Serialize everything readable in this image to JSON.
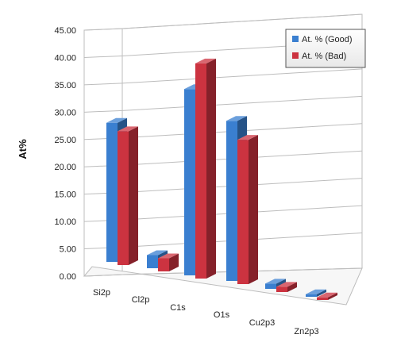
{
  "chart_data": {
    "type": "bar",
    "title": "",
    "xlabel": "",
    "ylabel": "At%",
    "ylim": [
      0,
      45
    ],
    "y_ticks": [
      "0.00",
      "5.00",
      "10.00",
      "15.00",
      "20.00",
      "25.00",
      "30.00",
      "35.00",
      "40.00",
      "45.00"
    ],
    "categories": [
      "Si2p",
      "Cl2p",
      "C1s",
      "O1s",
      "Cu2p3",
      "Zn2p3"
    ],
    "series": [
      {
        "name": "At. % (Good)",
        "values": [
          26.5,
          2.5,
          35.5,
          30.5,
          1.0,
          0.5
        ],
        "color": "#3a7fd0"
      },
      {
        "name": "At. % (Bad)",
        "values": [
          25.5,
          2.5,
          41.0,
          27.5,
          1.0,
          0.5
        ],
        "color": "#cc3340"
      }
    ],
    "grid": true,
    "legend_position": "top-right",
    "style": "3d-clustered"
  }
}
